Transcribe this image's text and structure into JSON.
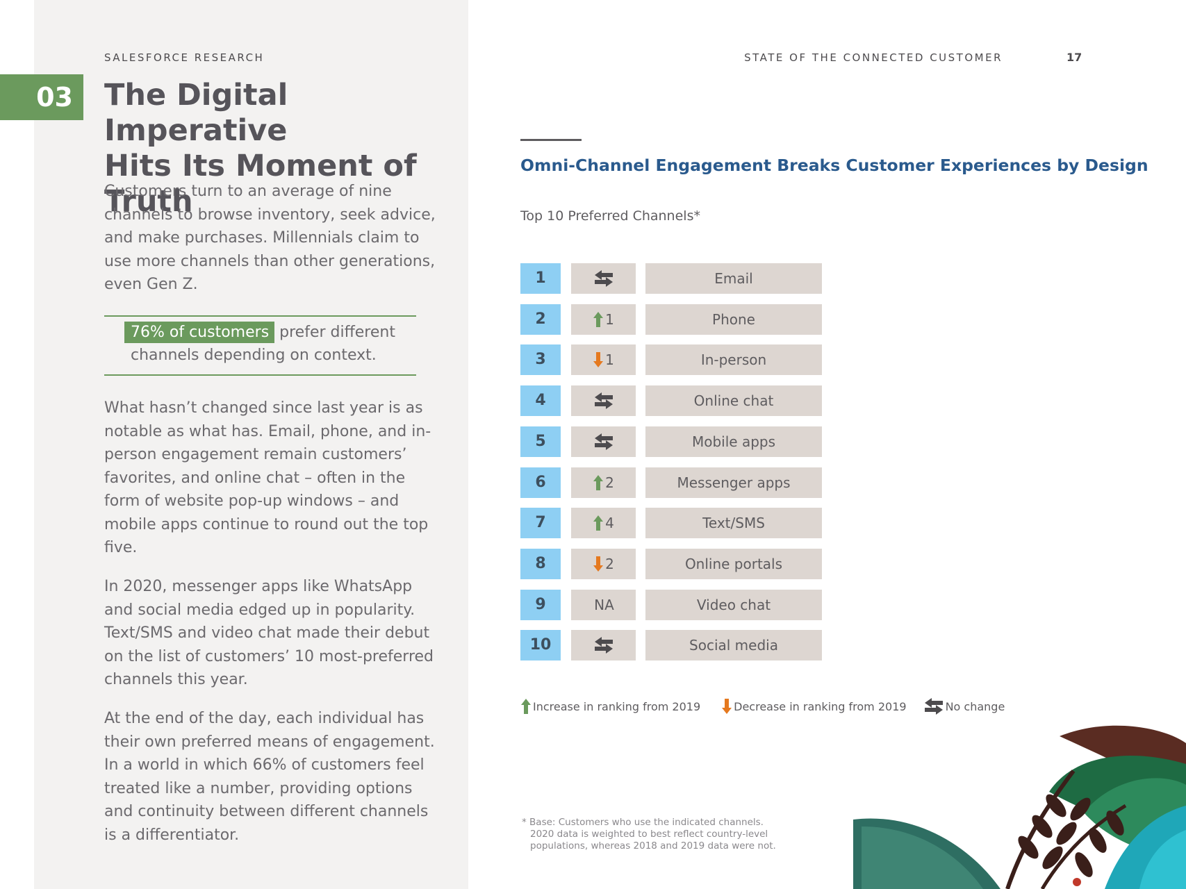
{
  "header": {
    "eyebrow": "SALESFORCE RESEARCH",
    "report_title": "STATE OF THE CONNECTED CUSTOMER",
    "page_number": "17"
  },
  "chapter": {
    "number": "03",
    "title_line1": "The Digital Imperative",
    "title_line2": "Hits Its Moment of Truth"
  },
  "body": {
    "para1": "Customers turn to an average of nine channels to browse inventory, seek advice, and make purchases. Millennials claim to use more channels than other generations, even Gen Z.",
    "callout_highlight": "76% of customers",
    "callout_rest": "prefer different channels depending on context.",
    "para2": "What hasn’t changed since last year is as notable as what has. Email, phone, and in-person engagement remain customers’ favorites, and online chat – often in the form of website pop-up windows – and mobile apps continue to round out the top five.",
    "para3": "In 2020, messenger apps like WhatsApp and social media edged up in popularity. Text/SMS and video chat made their debut on the list of customers’ 10 most-preferred channels this year.",
    "para4": "At the end of the day, each individual has their own preferred means of engagement. In a world in which 66% of customers feel treated like a number, providing options and continuity between different channels is a differentiator."
  },
  "section": {
    "title": "Omni-Channel Engagement Breaks Customer Experiences by Design",
    "subtitle": "Top 10 Preferred Channels*"
  },
  "ranking": [
    {
      "rank": "1",
      "change": "same",
      "change_label": "",
      "channel": "Email"
    },
    {
      "rank": "2",
      "change": "up",
      "change_label": "1",
      "channel": "Phone"
    },
    {
      "rank": "3",
      "change": "down",
      "change_label": "1",
      "channel": "In-person"
    },
    {
      "rank": "4",
      "change": "same",
      "change_label": "",
      "channel": "Online chat"
    },
    {
      "rank": "5",
      "change": "same",
      "change_label": "",
      "channel": "Mobile apps"
    },
    {
      "rank": "6",
      "change": "up",
      "change_label": "2",
      "channel": "Messenger apps"
    },
    {
      "rank": "7",
      "change": "up",
      "change_label": "4",
      "channel": "Text/SMS"
    },
    {
      "rank": "8",
      "change": "down",
      "change_label": "2",
      "channel": "Online portals"
    },
    {
      "rank": "9",
      "change": "na",
      "change_label": "NA",
      "channel": "Video chat"
    },
    {
      "rank": "10",
      "change": "same",
      "change_label": "",
      "channel": "Social media"
    }
  ],
  "legend": {
    "increase": "Increase in ranking from 2019",
    "decrease": "Decrease in ranking from 2019",
    "no_change": "No change"
  },
  "footnote": {
    "line1": "* Base: Customers who use the indicated channels.",
    "line2": "2020 data is weighted to best reflect country-level",
    "line3": "populations, whereas 2018 and 2019 data were not."
  },
  "colors": {
    "green": "#6b9a5d",
    "orange": "#e5791f",
    "blue_title": "#2a5a8d",
    "rank_blue": "#8ecff3",
    "cell_tan": "#ddd6d1",
    "panel_gray": "#f3f2f1"
  }
}
